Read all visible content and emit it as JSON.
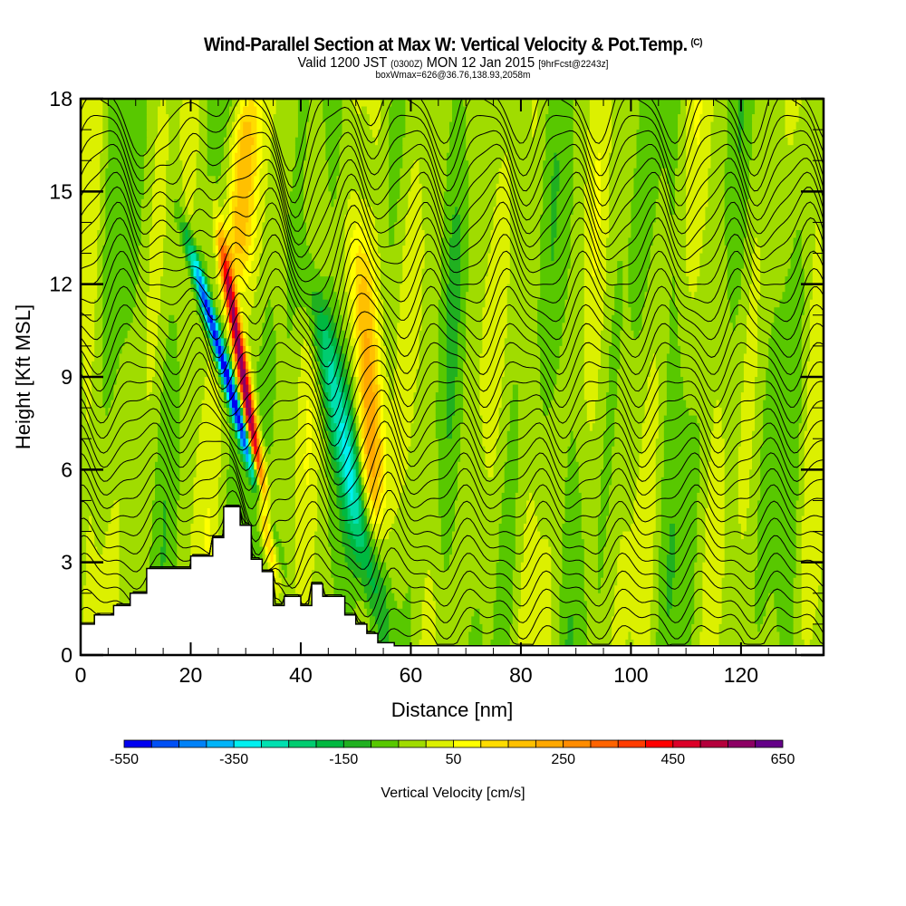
{
  "header": {
    "title": "Wind-Parallel Section at Max W: Vertical Velocity & Pot.Temp.",
    "title_mark": "(C)",
    "valid_prefix": "Valid 1200 JST",
    "valid_utc": "(0300Z)",
    "valid_date": "MON 12 Jan 2015",
    "forecast": "[9hrFcst@2243z]",
    "box_wmax": "boxWmax=626@36.76,138.93,2058m"
  },
  "chart_data": {
    "type": "heatmap",
    "title": "Wind-Parallel Section at Max W: Vertical Velocity & Pot.Temp.",
    "xlabel": "Distance [nm]",
    "ylabel": "Height [Kft MSL]",
    "xlim": [
      0,
      135
    ],
    "ylim": [
      0,
      18
    ],
    "xticks": [
      0,
      20,
      40,
      60,
      80,
      100,
      120
    ],
    "xtick_labels": [
      "0",
      "20",
      "40",
      "60",
      "80",
      "100",
      "120"
    ],
    "yticks": [
      0,
      3,
      6,
      9,
      12,
      15,
      18
    ],
    "ytick_labels": [
      "0",
      "3",
      "6",
      "9",
      "12",
      "15",
      "18"
    ],
    "x_minor_step": 5,
    "y_minor_step": 1,
    "grid": false,
    "colorbar": {
      "title": "Vertical Velocity [cm/s]",
      "levels": [
        -550,
        -500,
        -450,
        -400,
        -350,
        -300,
        -250,
        -200,
        -150,
        -100,
        -50,
        0,
        50,
        100,
        150,
        200,
        250,
        300,
        350,
        400,
        450,
        500,
        550,
        600,
        650
      ],
      "tick_values": [
        -550,
        -350,
        -150,
        50,
        250,
        450,
        650
      ],
      "tick_labels": [
        "-550",
        "-350",
        "-150",
        "50",
        "250",
        "450",
        "650"
      ],
      "colors": [
        "#0000f0",
        "#0050f5",
        "#0082f8",
        "#00b4f8",
        "#00f0f0",
        "#00e0b0",
        "#00cc70",
        "#00b840",
        "#20b020",
        "#58c800",
        "#a0dc00",
        "#dcf000",
        "#ffff00",
        "#ffdc00",
        "#ffc000",
        "#ffa800",
        "#ff8c00",
        "#ff6400",
        "#ff3c00",
        "#ff0000",
        "#dc0028",
        "#b4003c",
        "#8c0064",
        "#640088"
      ],
      "placement": "bottom"
    },
    "field_features": [
      {
        "name": "downdraft-lee-main",
        "center_x_nm": 27,
        "x_tilt_nm_per_kft": -1.6,
        "y_range_kft": [
          4.5,
          13
        ],
        "peak_cm_s": -520
      },
      {
        "name": "updraft-main",
        "center_x_nm": 30,
        "x_tilt_nm_per_kft": -0.9,
        "y_range_kft": [
          4,
          13
        ],
        "peak_cm_s": 626
      },
      {
        "name": "updraft-upper-left",
        "center_x_nm": 29,
        "x_tilt_nm_per_kft": 0.3,
        "y_range_kft": [
          12,
          18
        ],
        "peak_cm_s": 240
      },
      {
        "name": "downdraft-second",
        "center_x_nm": 48,
        "x_tilt_nm_per_kft": -1.1,
        "y_range_kft": [
          1.5,
          12
        ],
        "peak_cm_s": -230
      },
      {
        "name": "updraft-second",
        "center_x_nm": 52,
        "x_tilt_nm_per_kft": -0.3,
        "y_range_kft": [
          4.5,
          13.5
        ],
        "peak_cm_s": 260
      }
    ],
    "terrain": {
      "units": "kft",
      "x_nm": [
        0,
        2.5,
        2.5,
        6,
        6,
        9,
        9,
        12,
        12,
        20,
        20,
        24,
        24,
        26,
        26,
        29,
        29,
        31,
        31,
        33,
        33,
        35,
        35,
        37,
        37,
        40,
        40,
        42,
        42,
        44,
        44,
        48,
        48,
        50,
        50,
        52,
        52,
        54,
        54,
        57,
        57,
        135
      ],
      "height_kft": [
        1.0,
        1.0,
        1.3,
        1.3,
        1.6,
        1.6,
        2.0,
        2.0,
        2.8,
        2.8,
        3.2,
        3.2,
        3.8,
        3.8,
        4.8,
        4.8,
        4.2,
        4.2,
        3.1,
        3.1,
        2.7,
        2.7,
        1.6,
        1.6,
        1.9,
        1.9,
        1.6,
        1.6,
        2.3,
        2.3,
        1.9,
        1.9,
        1.3,
        1.3,
        1.0,
        1.0,
        0.7,
        0.7,
        0.4,
        0.4,
        0.3,
        0.3
      ]
    },
    "contours": {
      "variable": "Potential Temperature",
      "count": 34,
      "labels_visible": true
    }
  }
}
